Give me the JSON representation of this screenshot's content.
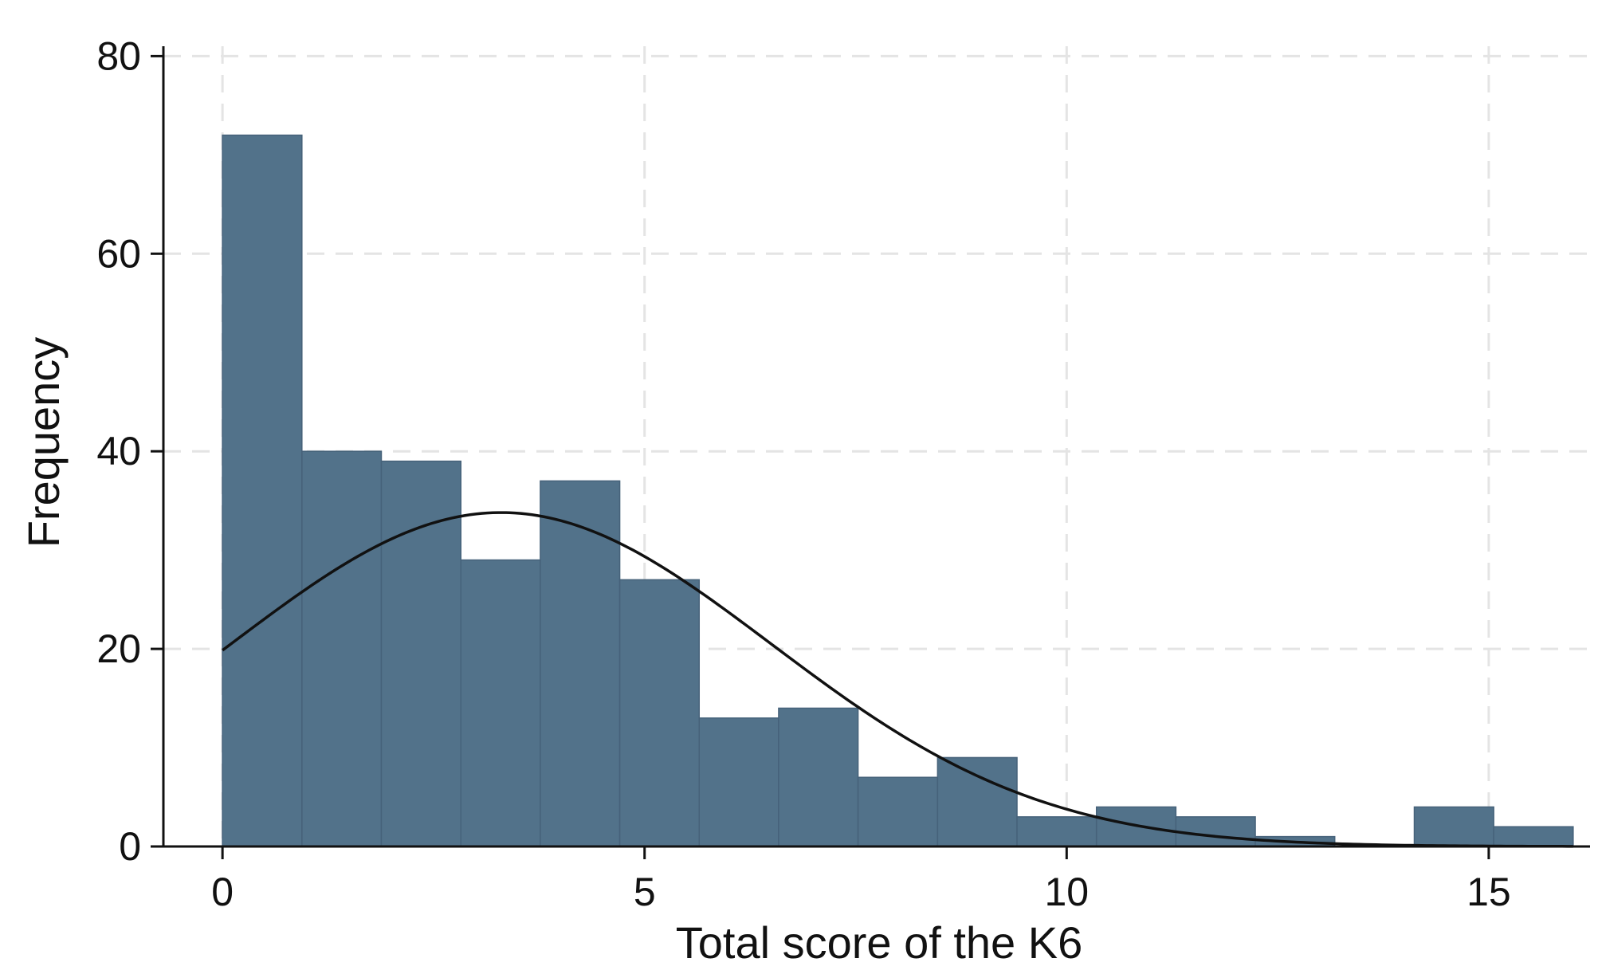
{
  "chart_data": {
    "type": "bar",
    "subtype": "histogram",
    "title": "",
    "xlabel": "Total score of the K6",
    "ylabel": "Frequency",
    "xlim": [
      -0.7,
      16.2
    ],
    "ylim": [
      0,
      81
    ],
    "x_ticks": [
      0,
      5,
      10,
      15
    ],
    "y_ticks": [
      0,
      20,
      40,
      60,
      80
    ],
    "grid": true,
    "bar_color": "#52728a",
    "bin_width": 0.941,
    "bins": [
      {
        "x0": 0.0,
        "x1": 0.941,
        "value": 72
      },
      {
        "x0": 0.941,
        "x1": 1.882,
        "value": 40
      },
      {
        "x0": 1.882,
        "x1": 2.824,
        "value": 39
      },
      {
        "x0": 2.824,
        "x1": 3.765,
        "value": 29
      },
      {
        "x0": 3.765,
        "x1": 4.706,
        "value": 37
      },
      {
        "x0": 4.706,
        "x1": 5.647,
        "value": 27
      },
      {
        "x0": 5.647,
        "x1": 6.588,
        "value": 13
      },
      {
        "x0": 6.588,
        "x1": 7.529,
        "value": 14
      },
      {
        "x0": 7.529,
        "x1": 8.471,
        "value": 7
      },
      {
        "x0": 8.471,
        "x1": 9.412,
        "value": 9
      },
      {
        "x0": 9.412,
        "x1": 10.353,
        "value": 3
      },
      {
        "x0": 10.353,
        "x1": 11.294,
        "value": 4
      },
      {
        "x0": 11.294,
        "x1": 12.235,
        "value": 3
      },
      {
        "x0": 12.235,
        "x1": 13.176,
        "value": 1
      },
      {
        "x0": 13.176,
        "x1": 14.118,
        "value": 0
      },
      {
        "x0": 14.118,
        "x1": 15.059,
        "value": 4
      },
      {
        "x0": 15.059,
        "x1": 16.0,
        "value": 2
      }
    ],
    "normal_curve": {
      "mean": 3.3,
      "sd": 3.2,
      "peak": 33.8,
      "x_range": [
        0,
        16
      ],
      "color": "#111111"
    }
  }
}
